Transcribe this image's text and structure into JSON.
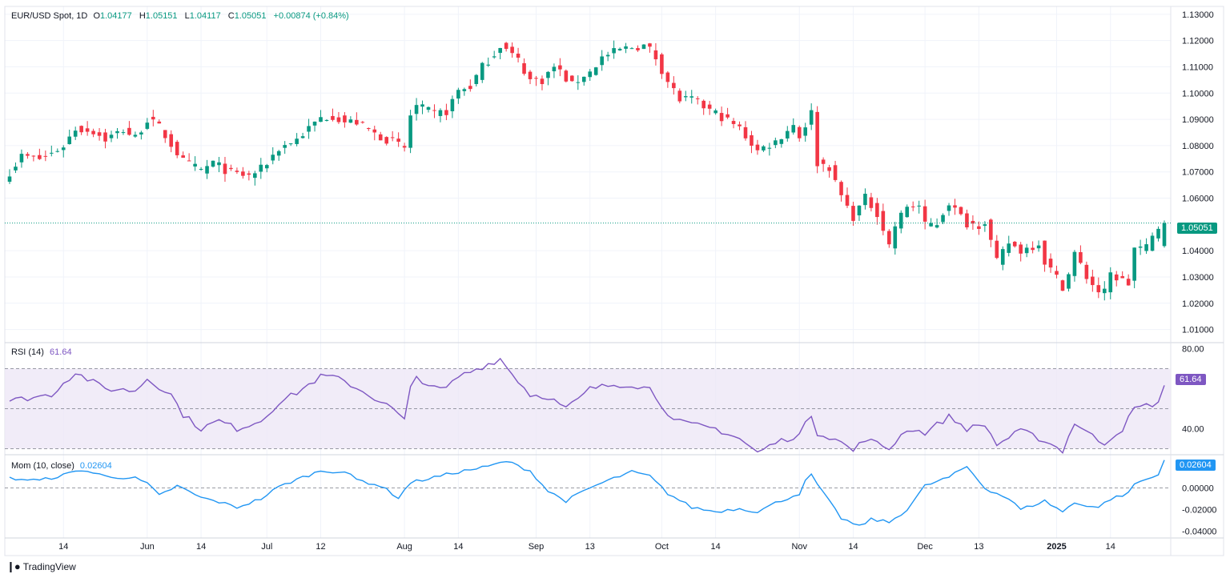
{
  "header": {
    "symbol": "EUR/USD Spot, 1D",
    "open_label": "O",
    "open": "1.04177",
    "high_label": "H",
    "high": "1.05151",
    "low_label": "L",
    "low": "1.04117",
    "close_label": "C",
    "close": "1.05051",
    "change": "+0.00874 (+0.84%)"
  },
  "branding": {
    "logo_text": "TradingView"
  },
  "colors": {
    "up": "#089981",
    "down": "#f23645",
    "grid": "#f0f3fa",
    "axis_text": "#131722",
    "rsi_line": "#7e57c2",
    "rsi_band": "#ede7f6",
    "mom_line": "#2196f3",
    "ref_line": "#787b86"
  },
  "chart_data": [
    {
      "type": "candlestick",
      "name": "EUR/USD Spot",
      "price_ylim": [
        1.005,
        1.133
      ],
      "y_ticks": [
        "1.13000",
        "1.12000",
        "1.11000",
        "1.10000",
        "1.09000",
        "1.08000",
        "1.07000",
        "1.06000",
        "1.04000",
        "1.03000",
        "1.02000",
        "1.01000"
      ],
      "last_price": 1.05051,
      "last_price_label": "1.05051",
      "x_ticks": [
        {
          "label": "14",
          "date": "2024-05-14"
        },
        {
          "label": "Jun",
          "date": "2024-06-03"
        },
        {
          "label": "14",
          "date": "2024-06-14"
        },
        {
          "label": "Jul",
          "date": "2024-07-01"
        },
        {
          "label": "12",
          "date": "2024-07-12"
        },
        {
          "label": "Aug",
          "date": "2024-08-01"
        },
        {
          "label": "14",
          "date": "2024-08-14"
        },
        {
          "label": "Sep",
          "date": "2024-09-02"
        },
        {
          "label": "13",
          "date": "2024-09-13"
        },
        {
          "label": "Oct",
          "date": "2024-10-01"
        },
        {
          "label": "14",
          "date": "2024-10-14"
        },
        {
          "label": "Nov",
          "date": "2024-11-01"
        },
        {
          "label": "14",
          "date": "2024-11-14"
        },
        {
          "label": "Dec",
          "date": "2024-12-02"
        },
        {
          "label": "13",
          "date": "2024-12-13"
        },
        {
          "label": "2025",
          "date": "2025-01-01"
        },
        {
          "label": "14",
          "date": "2025-01-14"
        }
      ],
      "close_anchors": [
        [
          "2024-05-01",
          1.07
        ],
        [
          "2024-05-03",
          1.076
        ],
        [
          "2024-05-08",
          1.075
        ],
        [
          "2024-05-10",
          1.077
        ],
        [
          "2024-05-14",
          1.08
        ],
        [
          "2024-05-16",
          1.0865
        ],
        [
          "2024-05-21",
          1.0855
        ],
        [
          "2024-05-23",
          1.0825
        ],
        [
          "2024-05-28",
          1.086
        ],
        [
          "2024-05-30",
          1.083
        ],
        [
          "2024-06-03",
          1.09
        ],
        [
          "2024-06-05",
          1.087
        ],
        [
          "2024-06-07",
          1.0805
        ],
        [
          "2024-06-11",
          1.074
        ],
        [
          "2024-06-14",
          1.0705
        ],
        [
          "2024-06-18",
          1.0735
        ],
        [
          "2024-06-21",
          1.0695
        ],
        [
          "2024-06-26",
          1.0685
        ],
        [
          "2024-06-28",
          1.071
        ],
        [
          "2024-07-03",
          1.079
        ],
        [
          "2024-07-08",
          1.0825
        ],
        [
          "2024-07-12",
          1.0905
        ],
        [
          "2024-07-16",
          1.0915
        ],
        [
          "2024-07-18",
          1.089
        ],
        [
          "2024-07-22",
          1.089
        ],
        [
          "2024-07-25",
          1.0845
        ],
        [
          "2024-07-30",
          1.0815
        ],
        [
          "2024-08-01",
          1.079
        ],
        [
          "2024-08-02",
          1.0915
        ],
        [
          "2024-08-05",
          1.095
        ],
        [
          "2024-08-08",
          1.092
        ],
        [
          "2024-08-12",
          1.093
        ],
        [
          "2024-08-14",
          1.101
        ],
        [
          "2024-08-16",
          1.1025
        ],
        [
          "2024-08-20",
          1.11
        ],
        [
          "2024-08-22",
          1.115
        ],
        [
          "2024-08-23",
          1.1185
        ],
        [
          "2024-08-26",
          1.1165
        ],
        [
          "2024-08-28",
          1.1125
        ],
        [
          "2024-08-30",
          1.105
        ],
        [
          "2024-09-03",
          1.105
        ],
        [
          "2024-09-05",
          1.11
        ],
        [
          "2024-09-06",
          1.108
        ],
        [
          "2024-09-10",
          1.103
        ],
        [
          "2024-09-12",
          1.107
        ],
        [
          "2024-09-13",
          1.108
        ],
        [
          "2024-09-17",
          1.1135
        ],
        [
          "2024-09-20",
          1.1165
        ],
        [
          "2024-09-24",
          1.1175
        ],
        [
          "2024-09-26",
          1.118
        ],
        [
          "2024-09-27",
          1.1165
        ],
        [
          "2024-09-30",
          1.1135
        ],
        [
          "2024-10-02",
          1.1045
        ],
        [
          "2024-10-04",
          1.0975
        ],
        [
          "2024-10-08",
          1.0975
        ],
        [
          "2024-10-11",
          1.0935
        ],
        [
          "2024-10-15",
          1.091
        ],
        [
          "2024-10-18",
          1.0865
        ],
        [
          "2024-10-23",
          1.078
        ],
        [
          "2024-10-25",
          1.0805
        ],
        [
          "2024-10-28",
          1.0815
        ],
        [
          "2024-10-30",
          1.086
        ],
        [
          "2024-10-31",
          1.088
        ],
        [
          "2024-11-01",
          1.0835
        ],
        [
          "2024-11-05",
          1.0925
        ],
        [
          "2024-11-06",
          1.0735
        ],
        [
          "2024-11-08",
          1.072
        ],
        [
          "2024-11-11",
          1.0655
        ],
        [
          "2024-11-13",
          1.0565
        ],
        [
          "2024-11-14",
          1.053
        ],
        [
          "2024-11-18",
          1.06
        ],
        [
          "2024-11-20",
          1.0545
        ],
        [
          "2024-11-22",
          1.042
        ],
        [
          "2024-11-25",
          1.0495
        ],
        [
          "2024-11-27",
          1.057
        ],
        [
          "2024-11-29",
          1.057
        ],
        [
          "2024-12-02",
          1.0495
        ],
        [
          "2024-12-04",
          1.0505
        ],
        [
          "2024-12-06",
          1.0585
        ],
        [
          "2024-12-09",
          1.0555
        ],
        [
          "2024-12-11",
          1.0505
        ],
        [
          "2024-12-13",
          1.05
        ],
        [
          "2024-12-16",
          1.0515
        ],
        [
          "2024-12-18",
          1.0355
        ],
        [
          "2024-12-20",
          1.043
        ],
        [
          "2024-12-24",
          1.04
        ],
        [
          "2024-12-27",
          1.043
        ],
        [
          "2024-12-30",
          1.036
        ],
        [
          "2025-01-02",
          1.0265
        ],
        [
          "2025-01-03",
          1.031
        ],
        [
          "2025-01-06",
          1.039
        ],
        [
          "2025-01-08",
          1.03
        ],
        [
          "2025-01-10",
          1.0245
        ],
        [
          "2025-01-13",
          1.024
        ],
        [
          "2025-01-14",
          1.031
        ],
        [
          "2025-01-17",
          1.0275
        ],
        [
          "2025-01-20",
          1.041
        ],
        [
          "2025-01-22",
          1.041
        ],
        [
          "2025-01-24",
          1.049
        ],
        [
          "2025-01-27",
          1.0505
        ]
      ],
      "final_bar": {
        "date": "2025-01-27",
        "open": 1.04177,
        "high": 1.05151,
        "low": 1.04117,
        "close": 1.05051
      }
    },
    {
      "type": "line",
      "name": "RSI (14)",
      "title": "RSI (14)",
      "value_label": "61.64",
      "last_value": 61.64,
      "ylim": [
        27,
        83
      ],
      "band_upper": 70,
      "band_lower": 30,
      "mid": 50,
      "y_ticks": [
        "80.00",
        "40.00"
      ],
      "anchors": [
        [
          "2024-05-01",
          54
        ],
        [
          "2024-05-10",
          57
        ],
        [
          "2024-05-14",
          63
        ],
        [
          "2024-05-16",
          68
        ],
        [
          "2024-05-23",
          60
        ],
        [
          "2024-05-30",
          59
        ],
        [
          "2024-06-03",
          65
        ],
        [
          "2024-06-07",
          57
        ],
        [
          "2024-06-11",
          47
        ],
        [
          "2024-06-14",
          40
        ],
        [
          "2024-06-19",
          44
        ],
        [
          "2024-06-24",
          40
        ],
        [
          "2024-06-28",
          44
        ],
        [
          "2024-07-03",
          53
        ],
        [
          "2024-07-08",
          58
        ],
        [
          "2024-07-12",
          66
        ],
        [
          "2024-07-16",
          66
        ],
        [
          "2024-07-19",
          62
        ],
        [
          "2024-07-24",
          57
        ],
        [
          "2024-07-30",
          50
        ],
        [
          "2024-08-01",
          44
        ],
        [
          "2024-08-02",
          60
        ],
        [
          "2024-08-05",
          66
        ],
        [
          "2024-08-08",
          60
        ],
        [
          "2024-08-12",
          60
        ],
        [
          "2024-08-14",
          66
        ],
        [
          "2024-08-20",
          71
        ],
        [
          "2024-08-23",
          75
        ],
        [
          "2024-08-26",
          71
        ],
        [
          "2024-08-30",
          57
        ],
        [
          "2024-09-04",
          56
        ],
        [
          "2024-09-09",
          50
        ],
        [
          "2024-09-12",
          57
        ],
        [
          "2024-09-13",
          60
        ],
        [
          "2024-09-19",
          62
        ],
        [
          "2024-09-24",
          62
        ],
        [
          "2024-09-27",
          60
        ],
        [
          "2024-10-01",
          52
        ],
        [
          "2024-10-03",
          44
        ],
        [
          "2024-10-08",
          42
        ],
        [
          "2024-10-14",
          40
        ],
        [
          "2024-10-18",
          35
        ],
        [
          "2024-10-23",
          28
        ],
        [
          "2024-10-28",
          33
        ],
        [
          "2024-11-01",
          37
        ],
        [
          "2024-11-05",
          47
        ],
        [
          "2024-11-06",
          38
        ],
        [
          "2024-11-11",
          35
        ],
        [
          "2024-11-14",
          29
        ],
        [
          "2024-11-18",
          35
        ],
        [
          "2024-11-22",
          30
        ],
        [
          "2024-11-27",
          40
        ],
        [
          "2024-12-02",
          38
        ],
        [
          "2024-12-06",
          46
        ],
        [
          "2024-12-11",
          40
        ],
        [
          "2024-12-16",
          42
        ],
        [
          "2024-12-18",
          32
        ],
        [
          "2024-12-24",
          39
        ],
        [
          "2024-12-30",
          34
        ],
        [
          "2025-01-02",
          29
        ],
        [
          "2025-01-06",
          43
        ],
        [
          "2025-01-10",
          34
        ],
        [
          "2025-01-13",
          33
        ],
        [
          "2025-01-16",
          40
        ],
        [
          "2025-01-20",
          50
        ],
        [
          "2025-01-24",
          53
        ],
        [
          "2025-01-27",
          61.64
        ]
      ]
    },
    {
      "type": "line",
      "name": "Mom (10, close)",
      "title": "Mom (10, close)",
      "value_label": "0.02604",
      "last_value": 0.02604,
      "ylim": [
        -0.0465,
        0.031
      ],
      "zero_line": 0,
      "y_ticks": [
        "0.02000",
        "0.00000",
        "-0.02000",
        "-0.04000"
      ],
      "anchors": [
        [
          "2024-05-01",
          0.009
        ],
        [
          "2024-05-08",
          0.007
        ],
        [
          "2024-05-14",
          0.012
        ],
        [
          "2024-05-17",
          0.017
        ],
        [
          "2024-05-23",
          0.011
        ],
        [
          "2024-05-30",
          0.009
        ],
        [
          "2024-06-03",
          0.004
        ],
        [
          "2024-06-05",
          -0.007
        ],
        [
          "2024-06-10",
          0.002
        ],
        [
          "2024-06-14",
          -0.009
        ],
        [
          "2024-06-19",
          -0.013
        ],
        [
          "2024-06-24",
          -0.018
        ],
        [
          "2024-06-28",
          -0.01
        ],
        [
          "2024-07-03",
          0.001
        ],
        [
          "2024-07-08",
          0.008
        ],
        [
          "2024-07-12",
          0.016
        ],
        [
          "2024-07-18",
          0.015
        ],
        [
          "2024-07-22",
          0.008
        ],
        [
          "2024-07-26",
          0.002
        ],
        [
          "2024-07-31",
          -0.009
        ],
        [
          "2024-08-02",
          0.005
        ],
        [
          "2024-08-08",
          0.01
        ],
        [
          "2024-08-14",
          0.015
        ],
        [
          "2024-08-21",
          0.02
        ],
        [
          "2024-08-26",
          0.025
        ],
        [
          "2024-08-30",
          0.016
        ],
        [
          "2024-09-04",
          -0.003
        ],
        [
          "2024-09-09",
          -0.012
        ],
        [
          "2024-09-13",
          0.0
        ],
        [
          "2024-09-18",
          0.007
        ],
        [
          "2024-09-24",
          0.015
        ],
        [
          "2024-09-27",
          0.011
        ],
        [
          "2024-10-02",
          -0.005
        ],
        [
          "2024-10-08",
          -0.018
        ],
        [
          "2024-10-14",
          -0.022
        ],
        [
          "2024-10-18",
          -0.019
        ],
        [
          "2024-10-23",
          -0.022
        ],
        [
          "2024-10-28",
          -0.014
        ],
        [
          "2024-11-01",
          -0.005
        ],
        [
          "2024-11-04",
          0.006
        ],
        [
          "2024-11-05",
          0.012
        ],
        [
          "2024-11-07",
          -0.005
        ],
        [
          "2024-11-12",
          -0.028
        ],
        [
          "2024-11-15",
          -0.036
        ],
        [
          "2024-11-19",
          -0.029
        ],
        [
          "2024-11-22",
          -0.032
        ],
        [
          "2024-11-27",
          -0.02
        ],
        [
          "2024-12-02",
          0.002
        ],
        [
          "2024-12-06",
          0.01
        ],
        [
          "2024-12-11",
          0.02
        ],
        [
          "2024-12-16",
          0.0
        ],
        [
          "2024-12-20",
          -0.01
        ],
        [
          "2024-12-24",
          -0.02
        ],
        [
          "2024-12-30",
          -0.012
        ],
        [
          "2025-01-02",
          -0.022
        ],
        [
          "2025-01-06",
          -0.014
        ],
        [
          "2025-01-10",
          -0.018
        ],
        [
          "2025-01-14",
          -0.01
        ],
        [
          "2025-01-17",
          -0.005
        ],
        [
          "2025-01-20",
          0.004
        ],
        [
          "2025-01-24",
          0.012
        ],
        [
          "2025-01-27",
          0.02604
        ]
      ]
    }
  ]
}
